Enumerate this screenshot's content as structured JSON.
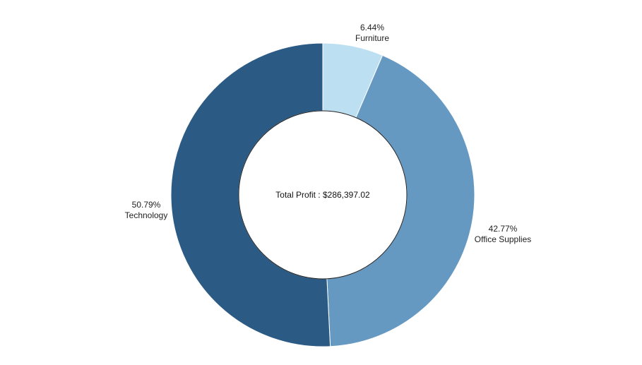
{
  "chart_data": {
    "type": "pie",
    "variant": "donut",
    "categories": [
      "Furniture",
      "Office Supplies",
      "Technology"
    ],
    "values": [
      6.44,
      42.77,
      50.79
    ],
    "value_labels": [
      "6.44%",
      "42.77%",
      "50.79%"
    ],
    "colors": [
      "#bddff2",
      "#6699c2",
      "#2b5a85"
    ],
    "center_label": "Total Profit : $286,397.02",
    "start": "12 o'clock",
    "direction": "clockwise",
    "legend": "none"
  }
}
